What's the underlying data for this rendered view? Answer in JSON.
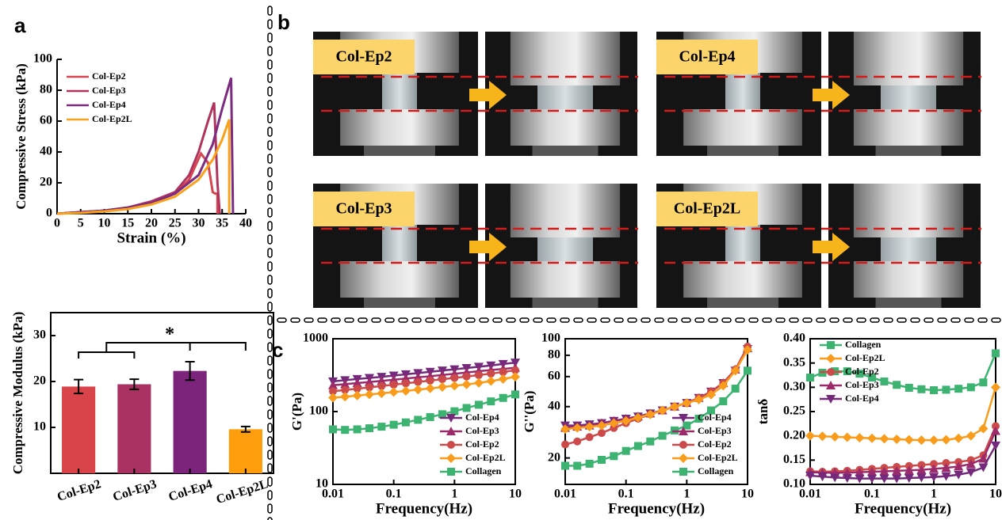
{
  "panel_labels": [
    "a",
    "b",
    "c"
  ],
  "photos": [
    {
      "label": "Col-Ep2"
    },
    {
      "label": "Col-Ep4"
    },
    {
      "label": "Col-Ep3"
    },
    {
      "label": "Col-Ep2L"
    }
  ],
  "chart_data": [
    {
      "type": "line",
      "xlabel": "Strain (%)",
      "ylabel": "Compressive Stress (kPa)",
      "xlim": [
        0,
        40
      ],
      "ylim": [
        0,
        100
      ],
      "xticks": [
        0,
        5,
        10,
        15,
        20,
        25,
        30,
        35,
        40
      ],
      "yticks": [
        0,
        20,
        40,
        60,
        80,
        100
      ],
      "legend": "upper left",
      "series": [
        {
          "name": "Col-Ep2",
          "color": "#d64550",
          "x": [
            0,
            5,
            10,
            15,
            20,
            25,
            28,
            30.5,
            32,
            33,
            33.5,
            34,
            34
          ],
          "values": [
            0,
            1,
            2,
            4,
            7,
            13,
            22,
            39,
            33,
            14,
            13,
            13,
            0
          ]
        },
        {
          "name": "Col-Ep3",
          "color": "#b0335e",
          "x": [
            0,
            5,
            10,
            15,
            20,
            25,
            28,
            30,
            32,
            33.3,
            34,
            34.5
          ],
          "values": [
            0,
            1,
            2,
            4,
            8,
            14,
            25,
            40,
            60,
            72,
            20,
            0
          ]
        },
        {
          "name": "Col-Ep4",
          "color": "#7b2b80",
          "x": [
            0,
            5,
            10,
            15,
            20,
            25,
            30,
            33,
            35,
            36.9,
            37.3
          ],
          "values": [
            0,
            1,
            2,
            4,
            7,
            13,
            25,
            45,
            68,
            88,
            0
          ]
        },
        {
          "name": "Col-Ep2L",
          "color": "#f8a11c",
          "x": [
            0,
            5,
            10,
            15,
            20,
            25,
            30,
            33,
            35,
            36.5,
            36.5
          ],
          "values": [
            0,
            0.5,
            1.5,
            3,
            6,
            11,
            22,
            35,
            48,
            61,
            0
          ]
        }
      ]
    },
    {
      "type": "bar",
      "ylabel": "Compressive Modulus (kPa)",
      "annotation": "*",
      "categories": [
        "Col-Ep2",
        "Col-Ep3",
        "Col-Ep4",
        "Col-Ep2L"
      ],
      "values": [
        18.9,
        19.4,
        22.3,
        9.6
      ],
      "errors": [
        1.5,
        1.1,
        2.0,
        0.6
      ],
      "colors": [
        "#d9444b",
        "#a93262",
        "#7c237b",
        "#ff9e0c"
      ],
      "ylim": [
        0,
        35
      ],
      "yticks": [
        10,
        20,
        30
      ]
    },
    {
      "type": "line",
      "xlabel": "Frequency(Hz)",
      "ylabel": "G'(Pa)",
      "xlog": true,
      "ylog": true,
      "box": true,
      "legend": "lower right",
      "xlim": [
        0.01,
        10
      ],
      "ylim": [
        10,
        1000
      ],
      "xticks": [
        0.01,
        0.1,
        1,
        10
      ],
      "yticks": [
        10,
        100,
        1000
      ],
      "x": [
        0.01,
        0.0158,
        0.0251,
        0.0398,
        0.0631,
        0.1,
        0.158,
        0.251,
        0.398,
        0.631,
        1,
        1.58,
        2.51,
        3.98,
        6.31,
        10
      ],
      "series": [
        {
          "name": "Col-Ep4",
          "color": "#74297a",
          "marker": "triangle-down",
          "values": [
            260,
            270,
            280,
            290,
            300,
            312,
            325,
            338,
            352,
            366,
            380,
            396,
            412,
            430,
            450,
            470
          ]
        },
        {
          "name": "Col-Ep3",
          "color": "#9c2b6b",
          "marker": "triangle-up",
          "values": [
            230,
            238,
            246,
            255,
            264,
            274,
            284,
            295,
            306,
            318,
            330,
            344,
            358,
            372,
            385,
            400
          ]
        },
        {
          "name": "Col-Ep2",
          "color": "#cc4a4a",
          "marker": "circle",
          "values": [
            190,
            198,
            206,
            215,
            224,
            234,
            244,
            255,
            266,
            278,
            290,
            303,
            317,
            332,
            350,
            370
          ]
        },
        {
          "name": "Col-Ep2L",
          "color": "#f99c1c",
          "marker": "diamond",
          "values": [
            155,
            160,
            166,
            172,
            178,
            185,
            192,
            200,
            208,
            217,
            226,
            236,
            248,
            262,
            280,
            300
          ]
        },
        {
          "name": "Collagen",
          "color": "#3cb371",
          "marker": "square",
          "values": [
            57,
            56,
            57,
            59,
            62,
            66,
            71,
            77,
            84,
            92,
            101,
            112,
            124,
            138,
            154,
            172
          ]
        }
      ]
    },
    {
      "type": "line",
      "xlabel": "Frequency(Hz)",
      "ylabel": "G''(Pa)",
      "xlog": true,
      "ylog": true,
      "box": true,
      "legend": "lower right",
      "xlim": [
        0.01,
        10
      ],
      "ylim": [
        14,
        100
      ],
      "xticks": [
        0.01,
        0.1,
        1,
        10
      ],
      "yticks": [
        20,
        40,
        60,
        80,
        100
      ],
      "x": [
        0.01,
        0.0158,
        0.0251,
        0.0398,
        0.0631,
        0.1,
        0.158,
        0.251,
        0.398,
        0.631,
        1,
        1.58,
        2.51,
        3.98,
        6.31,
        10
      ],
      "series": [
        {
          "name": "Col-Ep4",
          "color": "#74297a",
          "marker": "triangle-down",
          "values": [
            31,
            31,
            31.5,
            32,
            33,
            34,
            35,
            36.5,
            38,
            40,
            42,
            45,
            49,
            55,
            65,
            87
          ]
        },
        {
          "name": "Col-Ep3",
          "color": "#9c2b6b",
          "marker": "triangle-up",
          "values": [
            30,
            30.5,
            31,
            32,
            33,
            34,
            35,
            36.5,
            38,
            40,
            42,
            45,
            49,
            55,
            66,
            88
          ]
        },
        {
          "name": "Col-Ep2",
          "color": "#cc4a4a",
          "marker": "circle",
          "values": [
            24,
            25,
            26.5,
            28,
            30,
            32,
            34,
            36,
            38,
            40,
            42,
            45,
            49,
            55,
            66,
            90
          ]
        },
        {
          "name": "Col-Ep2L",
          "color": "#f99c1c",
          "marker": "diamond",
          "values": [
            29.5,
            30,
            30.5,
            31,
            32,
            33,
            34.5,
            36,
            38,
            40,
            42,
            44,
            47,
            53,
            65,
            86
          ]
        },
        {
          "name": "Collagen",
          "color": "#3cb371",
          "marker": "square",
          "values": [
            18,
            18,
            18.5,
            19.5,
            20.5,
            22,
            23.5,
            25,
            27,
            29,
            31,
            34,
            38,
            43,
            51,
            65
          ]
        }
      ]
    },
    {
      "type": "line",
      "xlabel": "Frequency(Hz)",
      "ylabel": "tanδ",
      "xlog": true,
      "box": true,
      "legend": "upper left",
      "xlim": [
        0.01,
        10
      ],
      "ylim": [
        0.1,
        0.4
      ],
      "xticks": [
        0.01,
        0.1,
        1,
        10
      ],
      "yticks": [
        {
          "value": 0.1,
          "label": "0.10"
        },
        0.15,
        {
          "value": 0.2,
          "label": "0.20"
        },
        0.25,
        {
          "value": 0.3,
          "label": "0.30"
        },
        0.35,
        {
          "value": 0.4,
          "label": "0.40"
        }
      ],
      "x": [
        0.01,
        0.0158,
        0.0251,
        0.0398,
        0.0631,
        0.1,
        0.158,
        0.251,
        0.398,
        0.631,
        1,
        1.58,
        2.51,
        3.98,
        6.31,
        10
      ],
      "series": [
        {
          "name": "Collagen",
          "color": "#3cb371",
          "marker": "square",
          "values": [
            0.32,
            0.33,
            0.333,
            0.333,
            0.328,
            0.32,
            0.312,
            0.305,
            0.299,
            0.296,
            0.294,
            0.295,
            0.297,
            0.3,
            0.31,
            0.37
          ]
        },
        {
          "name": "Col-Ep2L",
          "color": "#f99c1c",
          "marker": "diamond",
          "values": [
            0.2,
            0.199,
            0.198,
            0.197,
            0.196,
            0.195,
            0.194,
            0.193,
            0.192,
            0.191,
            0.191,
            0.192,
            0.195,
            0.2,
            0.215,
            0.3
          ]
        },
        {
          "name": "Col-Ep2",
          "color": "#cc4a4a",
          "marker": "circle",
          "values": [
            0.127,
            0.126,
            0.127,
            0.128,
            0.13,
            0.132,
            0.134,
            0.136,
            0.138,
            0.14,
            0.142,
            0.144,
            0.146,
            0.15,
            0.16,
            0.22
          ]
        },
        {
          "name": "Col-Ep3",
          "color": "#9c2b6b",
          "marker": "triangle-up",
          "values": [
            0.125,
            0.124,
            0.124,
            0.124,
            0.125,
            0.126,
            0.127,
            0.128,
            0.129,
            0.13,
            0.132,
            0.134,
            0.137,
            0.142,
            0.153,
            0.21
          ]
        },
        {
          "name": "Col-Ep4",
          "color": "#74297a",
          "marker": "triangle-down",
          "values": [
            0.118,
            0.116,
            0.114,
            0.113,
            0.112,
            0.112,
            0.112,
            0.112,
            0.113,
            0.114,
            0.115,
            0.117,
            0.12,
            0.125,
            0.135,
            0.18
          ]
        }
      ]
    }
  ]
}
